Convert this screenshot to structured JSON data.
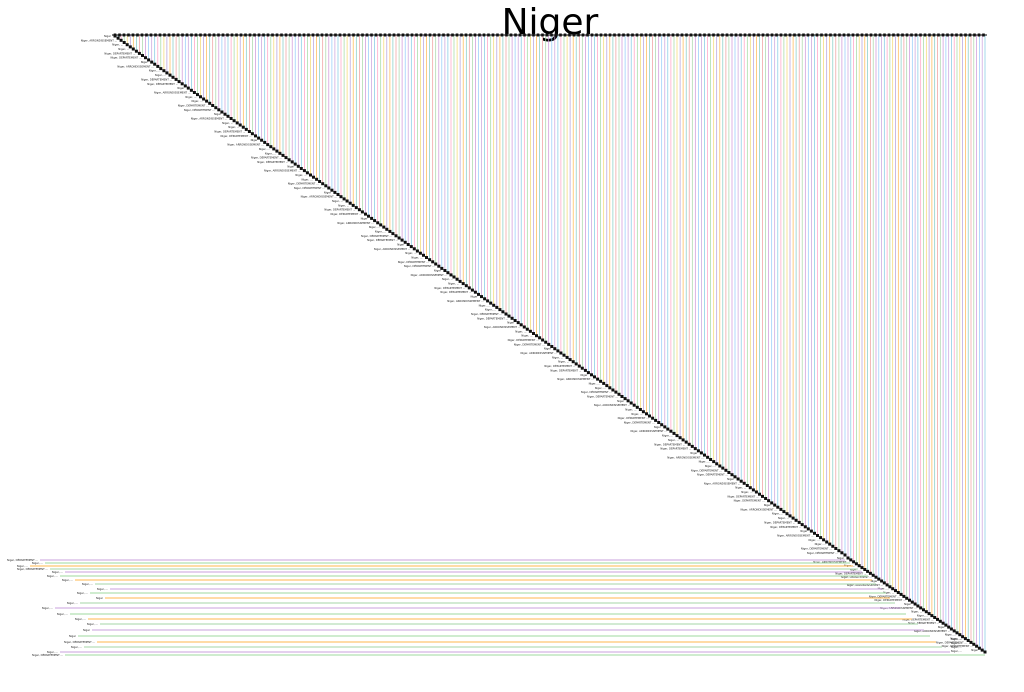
{
  "title": "Niger",
  "colors": {
    "background": "#ffffff",
    "marker": "#111111",
    "palette": [
      "#c9a0dc",
      "#7ec8e3",
      "#ff9ec4",
      "#9fd89f",
      "#f5d76e",
      "#b39ddb",
      "#ffb74d",
      "#80cbc4",
      "#ef9a9a",
      "#a5d6a7",
      "#ce93d8",
      "#90caf9"
    ]
  },
  "top_labels": [
    "Niger",
    "Niger, DÉPARTEMENT DE TCHIROZERINE, ...",
    "Niger, ARRONDISSEMENT ...",
    "Niger, DÉPARTEMENT ...",
    "Niger, ...",
    "Niger, DÉPARTEMENT ...",
    "Niger, ...",
    "Niger, DÉPARTEMENT ...",
    "Niger, DÉPARTEMENT ...",
    "Niger, ...",
    "Niger, DÉPARTEMENT ...",
    "Niger, ..."
  ],
  "bottom_labels": [
    "Niger, DÉPARTEMENT ...",
    "Niger, ...",
    "Niger, ...",
    "Niger, DÉPARTEMENT ...",
    "Niger, ...",
    "Niger, ...",
    "Niger, ...",
    "Niger, ...",
    "Niger, ...",
    "Niger, ...",
    "Niger",
    "Niger, ...",
    "Niger, ...",
    "Niger, ...",
    "Niger, ...",
    "Niger, ...",
    "Niger",
    "Niger"
  ],
  "right_labels": [
    "Niger, ...",
    "Niger, ...",
    "Niger, ...",
    "Niger, ...",
    "Niger, ...",
    "Niger, ...",
    "Niger, ...",
    "Niger, ...",
    "Niger, ...",
    "Niger, ..."
  ]
}
